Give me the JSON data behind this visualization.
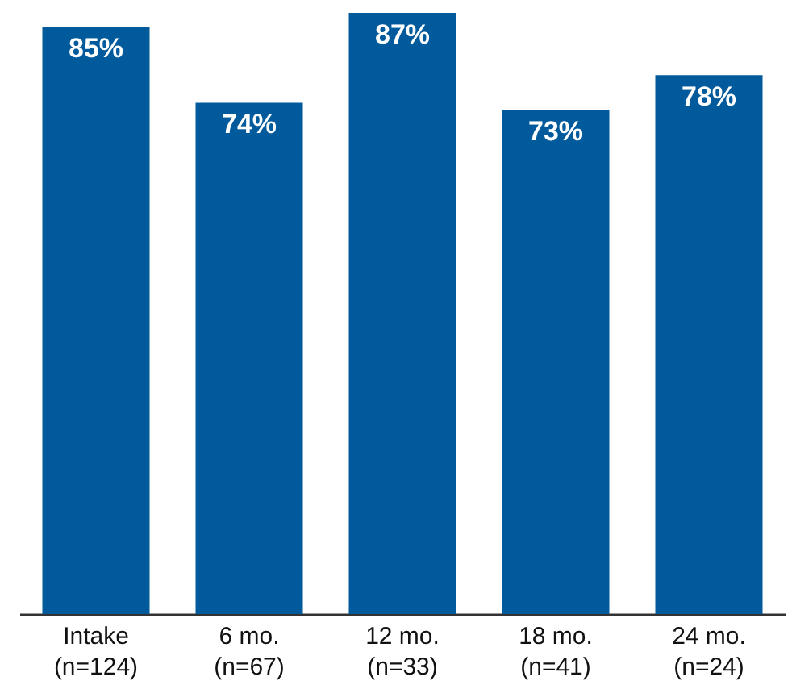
{
  "chart_data": {
    "type": "bar",
    "categories": [
      "Intake\n(n=124)",
      "6 mo.\n(n=67)",
      "12 mo.\n(n=33)",
      "18 mo.\n(n=41)",
      "24 mo.\n(n=24)"
    ],
    "values": [
      85,
      74,
      87,
      73,
      78
    ],
    "value_labels": [
      "85%",
      "74%",
      "87%",
      "73%",
      "78%"
    ],
    "color": "#005a9c"
  }
}
